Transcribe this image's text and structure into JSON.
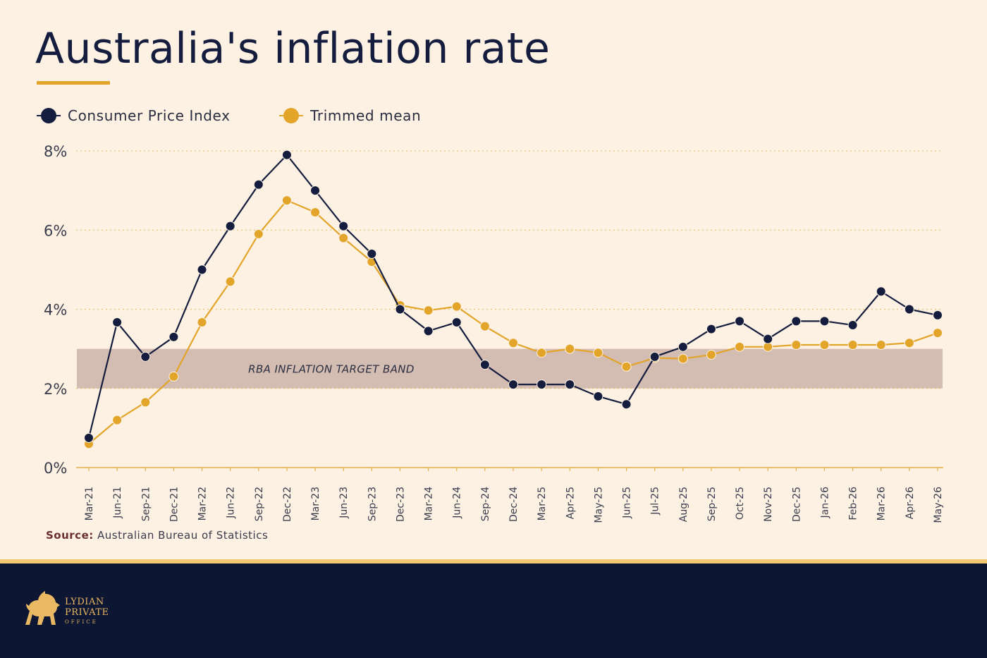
{
  "page": {
    "title": "Australia's inflation rate",
    "source_label": "Source:",
    "source_text": "Australian Bureau of Statistics"
  },
  "brand": {
    "line1": "LYDIAN",
    "line2": "PRIVATE",
    "line3": "OFFICE",
    "colors": {
      "navy": "#0d1633",
      "gold": "#e2a52a",
      "cream": "#fdf1e3",
      "band": "#d3bcb2"
    },
    "icon": "lion-icon"
  },
  "chart_data": {
    "type": "line",
    "categories": [
      "Mar-21",
      "Jun-21",
      "Sep-21",
      "Dec-21",
      "Mar-22",
      "Jun-22",
      "Sep-22",
      "Dec-22",
      "Mar-23",
      "Jun-23",
      "Sep-23",
      "Dec-23",
      "Mar-24",
      "Jun-24",
      "Sep-24",
      "Dec-24",
      "Mar-25",
      "Apr-25",
      "May-25",
      "Jun-25",
      "Jul-25",
      "Aug-25",
      "Sep-25",
      "Oct-25",
      "Nov-25",
      "Dec-25",
      "Jan-26",
      "Feb-26",
      "Mar-26",
      "Apr-26",
      "May-26"
    ],
    "series": [
      {
        "name": "Consumer Price Index",
        "color": "#141d3d",
        "values": [
          0.75,
          3.67,
          2.8,
          3.3,
          5.0,
          6.1,
          7.15,
          7.9,
          7.0,
          6.1,
          5.4,
          4.0,
          3.45,
          3.67,
          2.6,
          2.1,
          2.1,
          2.1,
          1.8,
          1.6,
          2.8,
          3.05,
          3.5,
          3.7,
          3.25,
          3.7,
          3.7,
          3.6,
          4.45,
          4.0,
          3.85
        ]
      },
      {
        "name": "Trimmed mean",
        "color": "#e2a52a",
        "values": [
          0.6,
          1.2,
          1.65,
          2.3,
          3.67,
          4.7,
          5.9,
          6.75,
          6.45,
          5.8,
          5.2,
          4.1,
          3.97,
          4.07,
          3.57,
          3.15,
          2.9,
          3.0,
          2.9,
          2.55,
          2.77,
          2.75,
          2.85,
          3.05,
          3.05,
          3.1,
          3.1,
          3.1,
          3.1,
          3.15,
          3.4
        ]
      }
    ],
    "yticks": [
      0,
      2,
      4,
      6,
      8
    ],
    "ytick_labels": [
      "0%",
      "2%",
      "4%",
      "6%",
      "8%"
    ],
    "ylim": [
      0,
      8
    ],
    "target_band": {
      "low": 2,
      "high": 3,
      "label": "RBA INFLATION TARGET BAND"
    },
    "grid": "horizontal dotted",
    "legend_position": "top-left"
  }
}
